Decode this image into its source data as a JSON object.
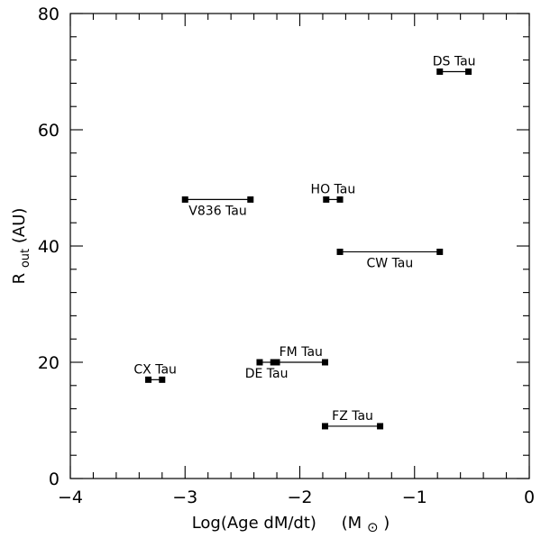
{
  "chart_data": {
    "type": "scatter",
    "title": "",
    "xlabel": "Log(Age dM/dt)",
    "xlabel_unit": "(M",
    "xlabel_unit_close": ")",
    "xlabel_unit_symbol": "⊙",
    "ylabel_main": "R",
    "ylabel_sub": "out",
    "ylabel_rest": "(AU)",
    "xlim": [
      -4,
      0
    ],
    "ylim": [
      0,
      80
    ],
    "x_ticks": [
      -4,
      -3,
      -2,
      -1,
      0
    ],
    "x_tick_labels": [
      "−4",
      "−3",
      "−2",
      "−1",
      "0"
    ],
    "y_ticks": [
      0,
      20,
      40,
      60,
      80
    ],
    "y_tick_labels": [
      "0",
      "20",
      "40",
      "60",
      "80"
    ],
    "x_minor_step": 0.2,
    "y_minor_step": 4,
    "grid": false,
    "legend": "none",
    "colors": {
      "marks": "#000000",
      "background": "#ffffff"
    },
    "series": [
      {
        "label": "DS Tau",
        "x": [
          -0.78,
          -0.53
        ],
        "y": 70,
        "label_pos": "above"
      },
      {
        "label": "V836 Tau",
        "x": [
          -3.0,
          -2.43
        ],
        "y": 48,
        "label_pos": "below"
      },
      {
        "label": "HO Tau",
        "x": [
          -1.77,
          -1.65
        ],
        "y": 48,
        "label_pos": "above"
      },
      {
        "label": "CW Tau",
        "x": [
          -1.65,
          -0.78
        ],
        "y": 39,
        "label_pos": "below"
      },
      {
        "label": "FM Tau",
        "x": [
          -2.2,
          -1.78
        ],
        "y": 20,
        "label_pos": "above"
      },
      {
        "label": "DE Tau",
        "x": [
          -2.35,
          -2.23
        ],
        "y": 20,
        "label_pos": "below"
      },
      {
        "label": "CX Tau",
        "x": [
          -3.32,
          -3.2
        ],
        "y": 17,
        "label_pos": "above"
      },
      {
        "label": "FZ Tau",
        "x": [
          -1.78,
          -1.3
        ],
        "y": 9,
        "label_pos": "above"
      }
    ]
  }
}
